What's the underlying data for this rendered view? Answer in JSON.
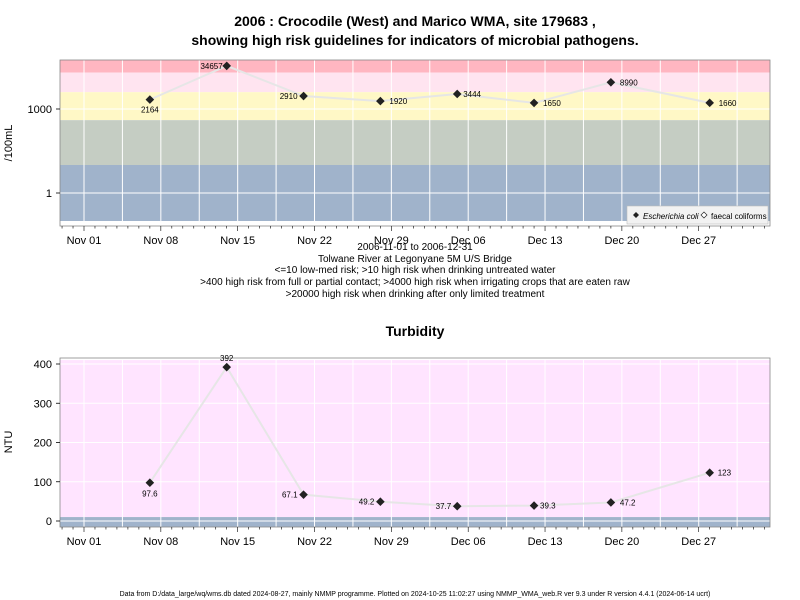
{
  "chart_data": [
    {
      "type": "scatter",
      "title_line1": "2006 : Crocodile (West) and Marico WMA, site 179683 ,",
      "title_line2": "showing high risk guidelines for indicators of microbial pathogens.",
      "ylabel": "/100mL",
      "yscale": "log",
      "yticks": [
        1,
        1000
      ],
      "xticks": [
        "Nov 01",
        "Nov 08",
        "Nov 15",
        "Nov 22",
        "Nov 29",
        "Dec 06",
        "Dec 13",
        "Dec 20",
        "Dec 27"
      ],
      "caption": [
        "2006-11-01 to 2006-12-31",
        "Tolwane River at Legonyane 5M U/S Bridge",
        "<=10 low-med risk; >10 high risk when drinking untreated water",
        ">400 high risk from full or partial contact; >4000 high risk when irrigating crops that are eaten raw",
        ">20000 high risk when drinking after only limited treatment"
      ],
      "legend": [
        {
          "name": "Escherichia coli",
          "marker": "filled-diamond"
        },
        {
          "name": "faecal coliforms",
          "marker": "open-diamond"
        }
      ],
      "series": [
        {
          "name": "Escherichia coli",
          "x": [
            "2006-11-07",
            "2006-11-14",
            "2006-11-21",
            "2006-11-28",
            "2006-12-05",
            "2006-12-12",
            "2006-12-19",
            "2006-12-28"
          ],
          "values": [
            2164,
            34657,
            2910,
            1920,
            3444,
            1650,
            8990,
            1660
          ],
          "labels": [
            "2164",
            "34657",
            "2910",
            "1920",
            "3444",
            "1650",
            "8990",
            "1660"
          ]
        }
      ],
      "bands": [
        {
          "from": 20000,
          "to": 100000,
          "color": "#ffb6c1"
        },
        {
          "from": 4000,
          "to": 20000,
          "color": "#ffe4f0"
        },
        {
          "from": 400,
          "to": 4000,
          "color": "#fff8c6"
        },
        {
          "from": 10,
          "to": 400,
          "color": "#c5cdc3"
        },
        {
          "from": 0.1,
          "to": 10,
          "color": "#a0b3cb"
        }
      ],
      "grid": true
    },
    {
      "type": "scatter",
      "title": "Turbidity",
      "ylabel": "NTU",
      "ylim": [
        -15,
        410
      ],
      "yticks": [
        0,
        100,
        200,
        300,
        400
      ],
      "xticks": [
        "Nov 01",
        "Nov 08",
        "Nov 15",
        "Nov 22",
        "Nov 29",
        "Dec 06",
        "Dec 13",
        "Dec 20",
        "Dec 27"
      ],
      "series": [
        {
          "name": "Turbidity",
          "x": [
            "2006-11-07",
            "2006-11-14",
            "2006-11-21",
            "2006-11-28",
            "2006-12-05",
            "2006-12-12",
            "2006-12-19",
            "2006-12-28"
          ],
          "values": [
            97.6,
            392,
            67.1,
            49.2,
            37.7,
            39.3,
            47.2,
            123
          ],
          "labels": [
            "97.6",
            "392",
            "67.1",
            "49.2",
            "37.7",
            "39.3",
            "47.2",
            "123"
          ]
        }
      ],
      "bands": [
        {
          "from": 10,
          "to": 410,
          "color": "#ffe4ff"
        },
        {
          "from": -15,
          "to": 10,
          "color": "#a0b3cb"
        }
      ],
      "grid": true
    }
  ],
  "footer": "Data from D:/data_large/wq/wms.db dated 2024-08-27, mainly NMMP programme. Plotted on 2024-10-25 11:02:27 using NMMP_WMA_web.R ver 9.3 under R version 4.4.1 (2024-06-14 ucrt)"
}
